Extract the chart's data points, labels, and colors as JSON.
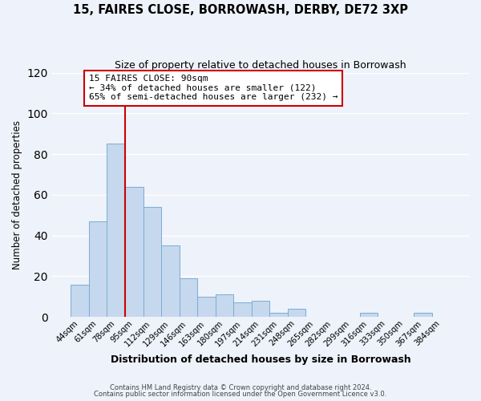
{
  "title": "15, FAIRES CLOSE, BORROWASH, DERBY, DE72 3XP",
  "subtitle": "Size of property relative to detached houses in Borrowash",
  "xlabel": "Distribution of detached houses by size in Borrowash",
  "ylabel": "Number of detached properties",
  "bar_color": "#c5d8ed",
  "bar_edge_color": "#7aadd4",
  "categories": [
    "44sqm",
    "61sqm",
    "78sqm",
    "95sqm",
    "112sqm",
    "129sqm",
    "146sqm",
    "163sqm",
    "180sqm",
    "197sqm",
    "214sqm",
    "231sqm",
    "248sqm",
    "265sqm",
    "282sqm",
    "299sqm",
    "316sqm",
    "333sqm",
    "350sqm",
    "367sqm",
    "384sqm"
  ],
  "values": [
    16,
    47,
    85,
    64,
    54,
    35,
    19,
    10,
    11,
    7,
    8,
    2,
    4,
    0,
    0,
    0,
    2,
    0,
    0,
    2,
    0
  ],
  "vline_x": 3.0,
  "vline_color": "#cc0000",
  "annotation_line1": "15 FAIRES CLOSE: 90sqm",
  "annotation_line2": "← 34% of detached houses are smaller (122)",
  "annotation_line3": "65% of semi-detached houses are larger (232) →",
  "annotation_box_edge_color": "#cc0000",
  "annotation_box_facecolor": "#ffffff",
  "ylim": [
    0,
    120
  ],
  "yticks": [
    0,
    20,
    40,
    60,
    80,
    100,
    120
  ],
  "footer_line1": "Contains HM Land Registry data © Crown copyright and database right 2024.",
  "footer_line2": "Contains public sector information licensed under the Open Government Licence v3.0.",
  "background_color": "#eef2fa",
  "grid_color": "#ffffff"
}
